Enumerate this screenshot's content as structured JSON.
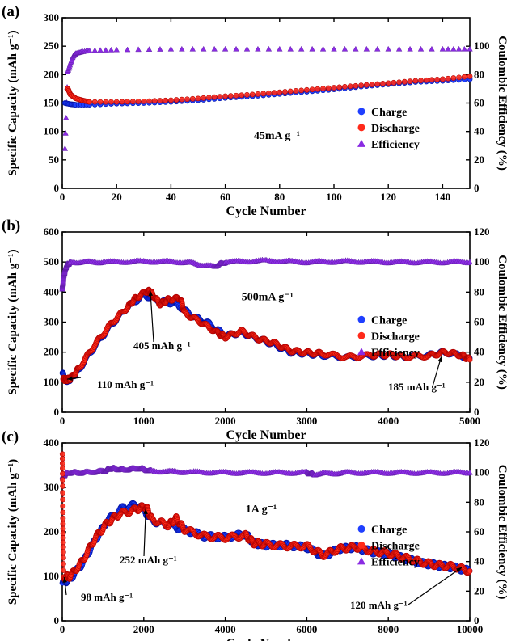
{
  "chart_data": [
    {
      "type": "scatter",
      "panel_label": "(a)",
      "xlabel": "Cycle Number",
      "ylabel": "Specific Capacity (mAh g⁻¹)",
      "y2label": "Coulombic Efficiency (%)",
      "xlim": [
        0,
        150
      ],
      "ylim": [
        0,
        300
      ],
      "y2lim": [
        0,
        120
      ],
      "xticks": [
        0,
        20,
        40,
        60,
        80,
        100,
        120,
        140
      ],
      "yticks": [
        0,
        50,
        100,
        150,
        200,
        250,
        300
      ],
      "y2ticks": [
        0,
        20,
        40,
        60,
        80,
        100
      ],
      "rate_label": "45mA g⁻¹",
      "legend_position": "right-middle",
      "series": [
        {
          "name": "Charge",
          "axis": "left",
          "color": "#1f3fff",
          "marker": "circle",
          "points": [
            [
              1,
              150
            ],
            [
              3,
              148
            ],
            [
              5,
              147
            ],
            [
              10,
              147
            ],
            [
              20,
              149
            ],
            [
              30,
              150
            ],
            [
              40,
              152
            ],
            [
              50,
              155
            ],
            [
              60,
              159
            ],
            [
              70,
              162
            ],
            [
              80,
              166
            ],
            [
              90,
              170
            ],
            [
              100,
              174
            ],
            [
              110,
              179
            ],
            [
              120,
              183
            ],
            [
              130,
              187
            ],
            [
              140,
              189
            ],
            [
              150,
              192
            ]
          ]
        },
        {
          "name": "Discharge",
          "axis": "left",
          "color": "#ff2a1a",
          "marker": "circle",
          "points": [
            [
              2,
              176
            ],
            [
              3,
              165
            ],
            [
              5,
              158
            ],
            [
              8,
              154
            ],
            [
              10,
              152
            ],
            [
              20,
              152
            ],
            [
              30,
              153
            ],
            [
              40,
              155
            ],
            [
              50,
              158
            ],
            [
              60,
              162
            ],
            [
              70,
              165
            ],
            [
              80,
              169
            ],
            [
              90,
              173
            ],
            [
              100,
              177
            ],
            [
              110,
              181
            ],
            [
              120,
              185
            ],
            [
              130,
              189
            ],
            [
              140,
              192
            ],
            [
              150,
              197
            ]
          ]
        },
        {
          "name": "Efficiency",
          "axis": "right",
          "color": "#8a2be2",
          "marker": "triangle",
          "points": [
            [
              1,
              28
            ],
            [
              2,
              82
            ],
            [
              3,
              88
            ],
            [
              4,
              93
            ],
            [
              5,
              95
            ],
            [
              7,
              96
            ],
            [
              10,
              97
            ],
            [
              20,
              97.5
            ],
            [
              40,
              98
            ],
            [
              60,
              98
            ],
            [
              80,
              98
            ],
            [
              100,
              98
            ],
            [
              120,
              98
            ],
            [
              140,
              98
            ],
            [
              150,
              98
            ]
          ]
        }
      ],
      "annotations": []
    },
    {
      "type": "scatter",
      "panel_label": "(b)",
      "xlabel": "Cycle Number",
      "ylabel": "Specific Capacity (mAh g⁻¹)",
      "y2label": "Coulombic Efficiency (%)",
      "xlim": [
        0,
        5000
      ],
      "ylim": [
        0,
        600
      ],
      "y2lim": [
        0,
        120
      ],
      "xticks": [
        0,
        1000,
        2000,
        3000,
        4000,
        5000
      ],
      "yticks": [
        0,
        100,
        200,
        300,
        400,
        500,
        600
      ],
      "y2ticks": [
        0,
        20,
        40,
        60,
        80,
        100,
        120
      ],
      "rate_label": "500mA g⁻¹",
      "legend_position": "right-middle",
      "series": [
        {
          "name": "Charge",
          "axis": "left",
          "color": "#1f3fff",
          "marker": "circle",
          "points": [
            [
              1,
              130
            ],
            [
              50,
              105
            ],
            [
              100,
              110
            ],
            [
              200,
              140
            ],
            [
              400,
              220
            ],
            [
              600,
              290
            ],
            [
              800,
              350
            ],
            [
              1000,
              390
            ],
            [
              1200,
              370
            ],
            [
              1400,
              360
            ],
            [
              1600,
              320
            ],
            [
              1800,
              295
            ],
            [
              2000,
              255
            ],
            [
              2200,
              265
            ],
            [
              2400,
              245
            ],
            [
              2600,
              225
            ],
            [
              2800,
              200
            ],
            [
              3000,
              195
            ],
            [
              3200,
              190
            ],
            [
              3500,
              182
            ],
            [
              3800,
              188
            ],
            [
              4000,
              190
            ],
            [
              4200,
              185
            ],
            [
              4500,
              190
            ],
            [
              4700,
              200
            ],
            [
              5000,
              180
            ]
          ]
        },
        {
          "name": "Discharge",
          "axis": "left",
          "color": "#ff2a1a",
          "marker": "circle",
          "points": [
            [
              10,
              110
            ],
            [
              50,
              108
            ],
            [
              100,
              112
            ],
            [
              200,
              145
            ],
            [
              400,
              225
            ],
            [
              600,
              295
            ],
            [
              800,
              350
            ],
            [
              900,
              380
            ],
            [
              1050,
              405
            ],
            [
              1100,
              395
            ],
            [
              1200,
              360
            ],
            [
              1300,
              375
            ],
            [
              1450,
              380
            ],
            [
              1500,
              330
            ],
            [
              1700,
              300
            ],
            [
              1900,
              265
            ],
            [
              2000,
              250
            ],
            [
              2200,
              270
            ],
            [
              2400,
              245
            ],
            [
              2600,
              230
            ],
            [
              2800,
              205
            ],
            [
              3000,
              198
            ],
            [
              3200,
              195
            ],
            [
              3500,
              183
            ],
            [
              3800,
              190
            ],
            [
              4000,
              192
            ],
            [
              4200,
              185
            ],
            [
              4500,
              188
            ],
            [
              4700,
              200
            ],
            [
              4900,
              190
            ],
            [
              5000,
              175
            ]
          ]
        },
        {
          "name": "Efficiency",
          "axis": "right",
          "color": "#8a2be2",
          "marker": "triangle",
          "points": [
            [
              1,
              82
            ],
            [
              20,
              92
            ],
            [
              50,
              98
            ],
            [
              100,
              100
            ],
            [
              500,
              100
            ],
            [
              1000,
              100.5
            ],
            [
              1500,
              100
            ],
            [
              1850,
              97
            ],
            [
              2000,
              100
            ],
            [
              2500,
              101
            ],
            [
              3000,
              100
            ],
            [
              3500,
              100.5
            ],
            [
              4000,
              100
            ],
            [
              4500,
              100
            ],
            [
              5000,
              100
            ]
          ]
        }
      ],
      "annotations": [
        {
          "text": "405 mAh g⁻¹",
          "x": 1080,
          "y": 405
        },
        {
          "text": "110 mAh g⁻¹",
          "x": 60,
          "y": 110
        },
        {
          "text": "185 mAh g⁻¹",
          "x": 4650,
          "y": 185
        }
      ]
    },
    {
      "type": "scatter",
      "panel_label": "(c)",
      "xlabel": "Cycle Number",
      "ylabel": "Specific Capacity (mAh g⁻¹)",
      "y2label": "Coulombic Efficiency (%)",
      "xlim": [
        0,
        10000
      ],
      "ylim": [
        0,
        400
      ],
      "y2lim": [
        0,
        120
      ],
      "xticks": [
        0,
        2000,
        4000,
        6000,
        8000,
        10000
      ],
      "yticks": [
        0,
        100,
        200,
        300,
        400
      ],
      "y2ticks": [
        0,
        20,
        40,
        60,
        80,
        100,
        120
      ],
      "rate_label": "1A g⁻¹",
      "legend_position": "right-middle",
      "series": [
        {
          "name": "Charge",
          "axis": "left",
          "color": "#1f3fff",
          "marker": "circle",
          "points": [
            [
              1,
              85
            ],
            [
              200,
              95
            ],
            [
              500,
              130
            ],
            [
              800,
              180
            ],
            [
              1100,
              225
            ],
            [
              1500,
              255
            ],
            [
              1900,
              262
            ],
            [
              2200,
              225
            ],
            [
              2600,
              215
            ],
            [
              3000,
              205
            ],
            [
              3500,
              190
            ],
            [
              4000,
              188
            ],
            [
              4500,
              195
            ],
            [
              4700,
              175
            ],
            [
              5000,
              170
            ],
            [
              5500,
              170
            ],
            [
              6000,
              165
            ],
            [
              6400,
              145
            ],
            [
              6800,
              162
            ],
            [
              7200,
              165
            ],
            [
              7600,
              155
            ],
            [
              8000,
              150
            ],
            [
              8400,
              140
            ],
            [
              8800,
              130
            ],
            [
              9200,
              125
            ],
            [
              9600,
              120
            ],
            [
              10000,
              112
            ]
          ]
        },
        {
          "name": "Discharge",
          "axis": "left",
          "color": "#ff2a1a",
          "marker": "circle",
          "points": [
            [
              5,
              375
            ],
            [
              30,
              98
            ],
            [
              200,
              100
            ],
            [
              500,
              135
            ],
            [
              800,
              185
            ],
            [
              1100,
              220
            ],
            [
              1400,
              240
            ],
            [
              1800,
              250
            ],
            [
              2050,
              258
            ],
            [
              2200,
              228
            ],
            [
              2600,
              215
            ],
            [
              2800,
              230
            ],
            [
              3000,
              205
            ],
            [
              3500,
              190
            ],
            [
              4000,
              187
            ],
            [
              4500,
              192
            ],
            [
              4700,
              175
            ],
            [
              5000,
              172
            ],
            [
              5500,
              168
            ],
            [
              6000,
              168
            ],
            [
              6400,
              148
            ],
            [
              6800,
              162
            ],
            [
              7200,
              166
            ],
            [
              7600,
              157
            ],
            [
              8000,
              152
            ],
            [
              8400,
              142
            ],
            [
              8800,
              132
            ],
            [
              9200,
              125
            ],
            [
              9600,
              122
            ],
            [
              10000,
              112
            ]
          ]
        },
        {
          "name": "Efficiency",
          "axis": "right",
          "color": "#8a2be2",
          "marker": "triangle",
          "points": [
            [
              1,
              97
            ],
            [
              100,
              100
            ],
            [
              500,
              100
            ],
            [
              1000,
              101
            ],
            [
              1200,
              103
            ],
            [
              1500,
              102
            ],
            [
              1900,
              103
            ],
            [
              2200,
              101
            ],
            [
              3000,
              100.5
            ],
            [
              4000,
              100
            ],
            [
              5000,
              100
            ],
            [
              6000,
              100
            ],
            [
              6200,
              99
            ],
            [
              7000,
              100
            ],
            [
              8000,
              100
            ],
            [
              9000,
              100
            ],
            [
              10000,
              100
            ]
          ]
        }
      ],
      "annotations": [
        {
          "text": "252 mAh g⁻¹",
          "x": 2050,
          "y": 252
        },
        {
          "text": "98 mAh g⁻¹",
          "x": 50,
          "y": 98
        },
        {
          "text": "120 mAh g⁻¹",
          "x": 9800,
          "y": 120
        }
      ]
    }
  ]
}
